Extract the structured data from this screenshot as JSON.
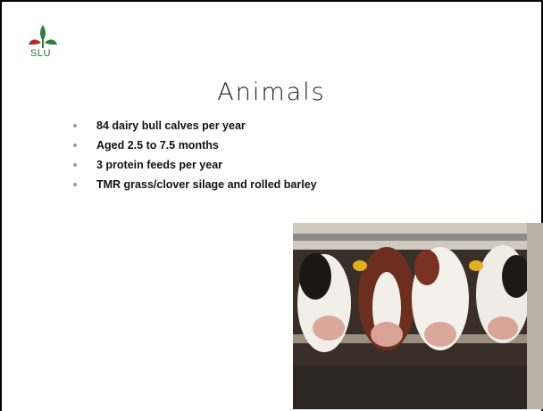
{
  "logo": {
    "text": "SLU"
  },
  "title": "Animals",
  "bullets": [
    "84 dairy bull calves per year",
    "Aged 2.5 to 7.5 months",
    "3 protein feeds per year",
    "TMR grass/clover silage and rolled barley"
  ]
}
